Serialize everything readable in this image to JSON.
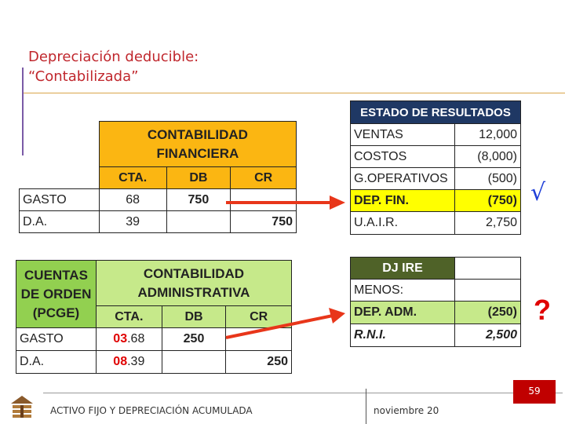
{
  "title": {
    "line1": "Depreciación deducible:",
    "line2": "“Contabilizada”"
  },
  "financial": {
    "header_line1": "CONTABILIDAD",
    "header_line2": "FINANCIERA",
    "col_cta": "CTA.",
    "col_db": "DB",
    "col_cr": "CR",
    "rows": [
      {
        "label": "GASTO",
        "cta": "68",
        "db": "750",
        "cr": ""
      },
      {
        "label": "D.A.",
        "cta": "39",
        "db": "",
        "cr": "750"
      }
    ]
  },
  "admin": {
    "side_line1": "CUENTAS",
    "side_line2": "DE ORDEN",
    "side_line3": "(PCGE)",
    "header_line1": "CONTABILIDAD",
    "header_line2": "ADMINISTRATIVA",
    "col_cta": "CTA.",
    "col_db": "DB",
    "col_cr": "CR",
    "rows": [
      {
        "label": "GASTO",
        "cta_red": "03",
        "cta_rest": ".68",
        "db": "250",
        "cr": ""
      },
      {
        "label": "D.A.",
        "cta_red": "08",
        "cta_rest": ".39",
        "db": "",
        "cr": "250"
      }
    ]
  },
  "income_statement": {
    "header": "ESTADO DE RESULTADOS",
    "rows": [
      {
        "label": "VENTAS",
        "value": "12,000"
      },
      {
        "label": "COSTOS",
        "value": "(8,000)"
      },
      {
        "label": "G.OPERATIVOS",
        "value": "(500)"
      },
      {
        "label": "DEP. FIN.",
        "value": "(750)"
      },
      {
        "label": "U.A.I.R.",
        "value": "2,750"
      }
    ]
  },
  "dj_ire": {
    "header": "DJ IRE",
    "rows": [
      {
        "label": "MENOS:",
        "value": ""
      },
      {
        "label": "DEP. ADM.",
        "value": "(250)"
      },
      {
        "label": "R.N.I.",
        "value": "2,500"
      }
    ]
  },
  "marks": {
    "check": "√",
    "question": "?"
  },
  "footer": {
    "left": "ACTIVO FIJO Y DEPRECIACIÓN ACUMULADA",
    "date": "noviembre 20",
    "page": "59"
  },
  "colors": {
    "title_red": "#c0272d",
    "orange": "#fbb612",
    "green": "#92d050",
    "dark_green": "#4f6228",
    "navy": "#1f3864",
    "yellow": "#ffff00",
    "arrow_red": "#e8361a"
  }
}
